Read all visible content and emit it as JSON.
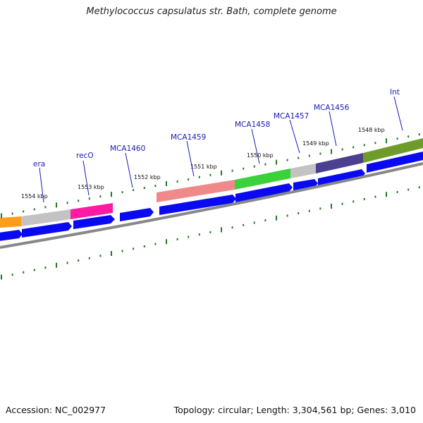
{
  "title": "Methylococcus capsulatus str. Bath, complete genome",
  "footer": {
    "accession": "Accession: NC_002977",
    "summary": "Topology: circular; Length: 3,304,561 bp; Genes: 3,010"
  },
  "kbp_labels": [
    "1554 kbp",
    "1553 kbp",
    "1552 kbp",
    "1551 kbp",
    "1550 kbp",
    "1549 kbp",
    "1548 kbp"
  ],
  "gene_labels": [
    "era",
    "recO",
    "MCA1460",
    "MCA1459",
    "MCA1458",
    "MCA1457",
    "MCA1456",
    "Int"
  ],
  "colors": {
    "cds": "#0a0af0",
    "orange": "#ff9c19",
    "gray": "#c3c3c3",
    "magenta": "#ff1aa3",
    "salmon": "#f08a8a",
    "green": "#3ad13a",
    "purple": "#4b3f8f",
    "olive": "#6f9b2a",
    "tick": "#1f7a1f",
    "backbone": "#888888"
  }
}
